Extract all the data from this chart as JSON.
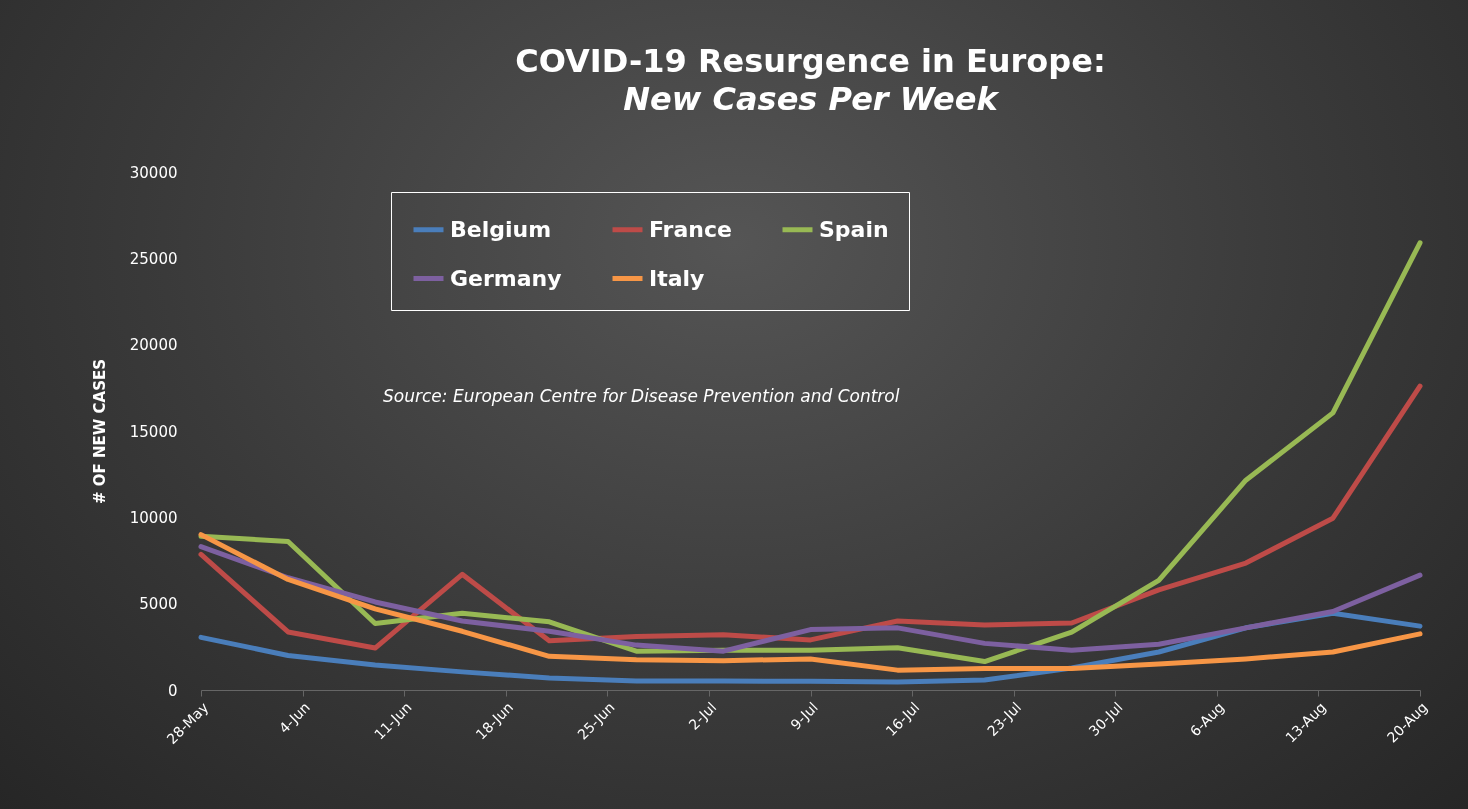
{
  "chart_data": {
    "type": "line",
    "title": "COVID-19 Resurgence in Europe:",
    "subtitle": "New Cases Per Week",
    "ylabel": "# OF NEW CASES",
    "annotations": [
      "Source: European Centre for Disease Prevention and Control"
    ],
    "x": [
      "--05-28",
      "--06-03",
      "--06-09",
      "--06-15",
      "--06-21",
      "--06-27",
      "--07-03",
      "--07-09",
      "--07-15",
      "--07-21",
      "--07-27",
      "--08-02",
      "--08-08",
      "--08-14",
      "--08-20"
    ],
    "series": [
      {
        "name": "Belgium",
        "color": "#4a7ebb",
        "values": [
          3050,
          2000,
          1450,
          1050,
          700,
          520,
          520,
          500,
          460,
          580,
          1270,
          2200,
          3600,
          4450,
          3700
        ]
      },
      {
        "name": "France",
        "color": "#be4b48",
        "values": [
          7850,
          3360,
          2430,
          6700,
          2850,
          3100,
          3200,
          2900,
          4000,
          3760,
          3880,
          5800,
          7350,
          9950,
          17600
        ]
      },
      {
        "name": "Spain",
        "color": "#98b954",
        "values": [
          8900,
          8600,
          3850,
          4450,
          3950,
          2250,
          2300,
          2300,
          2450,
          1650,
          3350,
          6350,
          12150,
          16050,
          25900
        ]
      },
      {
        "name": "Germany",
        "color": "#7d60a0",
        "values": [
          8300,
          6500,
          5100,
          4000,
          3400,
          2600,
          2250,
          3500,
          3600,
          2700,
          2300,
          2650,
          3600,
          4550,
          6650
        ]
      },
      {
        "name": "Italy",
        "color": "#f79646",
        "values": [
          9000,
          6400,
          4700,
          3400,
          1950,
          1750,
          1700,
          1800,
          1150,
          1250,
          1250,
          1500,
          1800,
          2200,
          3250
        ]
      }
    ],
    "xlim": [
      "--05-28",
      "--08-20"
    ],
    "xticks": [
      {
        "value": "--05-28",
        "label": "28-May"
      },
      {
        "value": "--06-04",
        "label": "4-Jun"
      },
      {
        "value": "--06-11",
        "label": "11-Jun"
      },
      {
        "value": "--06-18",
        "label": "18-Jun"
      },
      {
        "value": "--06-25",
        "label": "25-Jun"
      },
      {
        "value": "--07-02",
        "label": "2-Jul"
      },
      {
        "value": "--07-09",
        "label": "9-Jul"
      },
      {
        "value": "--07-16",
        "label": "16-Jul"
      },
      {
        "value": "--07-23",
        "label": "23-Jul"
      },
      {
        "value": "--07-30",
        "label": "30-Jul"
      },
      {
        "value": "--08-06",
        "label": "6-Aug"
      },
      {
        "value": "--08-13",
        "label": "13-Aug"
      },
      {
        "value": "--08-20",
        "label": "20-Aug"
      }
    ],
    "ylim": [
      0,
      30000
    ],
    "yticks": [
      0,
      5000,
      10000,
      15000,
      20000,
      25000,
      30000
    ],
    "grid": false,
    "legend": "top",
    "marker": "none",
    "line_style": "solid"
  }
}
